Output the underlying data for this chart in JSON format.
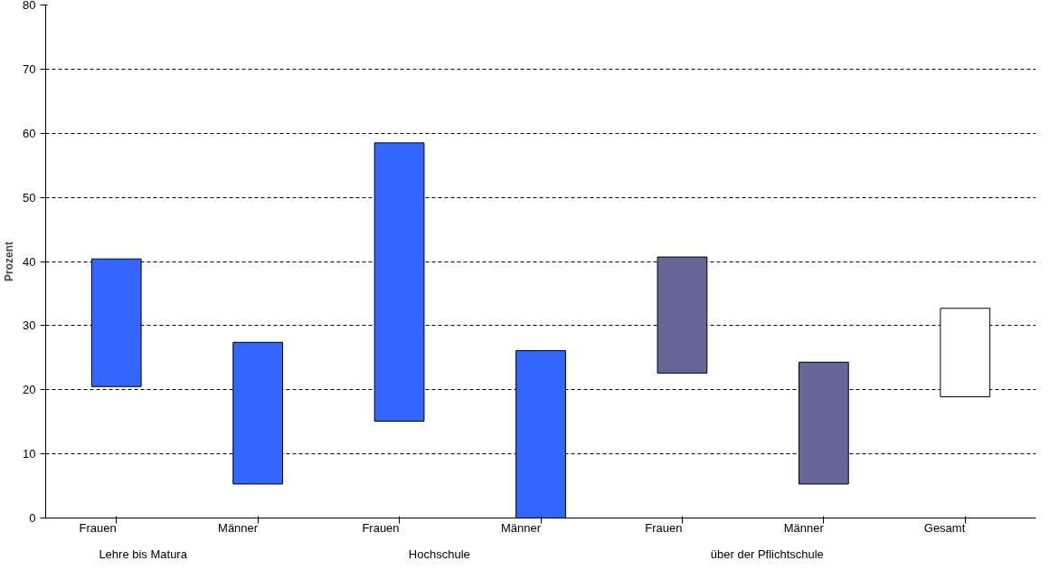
{
  "chart_data": {
    "type": "bar",
    "ylabel": "Prozent",
    "categories": [
      [
        "Lehre bis Matura",
        "Frauen"
      ],
      [
        null,
        "Männer"
      ],
      [
        "Hochschule",
        "Frauen"
      ],
      [
        null,
        "Männer"
      ],
      [
        "über der Pflichtschule",
        "Frauen"
      ],
      [
        null,
        "Männer"
      ],
      [
        null,
        "Gesamt"
      ]
    ],
    "base": [
      20.5,
      5.3,
      15.1,
      0,
      22.6,
      5.3,
      18.9
    ],
    "values": [
      19.9,
      22.1,
      43.4,
      26.1,
      18.1,
      19.0,
      13.8
    ],
    "colors": [
      "#3366ff",
      "#3366ff",
      "#3366ff",
      "#3366ff",
      "#666699",
      "#666699",
      "#ffffff"
    ],
    "ylim": [
      0,
      80
    ],
    "yticks": [
      0,
      10,
      20,
      30,
      40,
      50,
      60,
      70,
      80
    ],
    "grid": "y",
    "line_style": "dashed"
  }
}
